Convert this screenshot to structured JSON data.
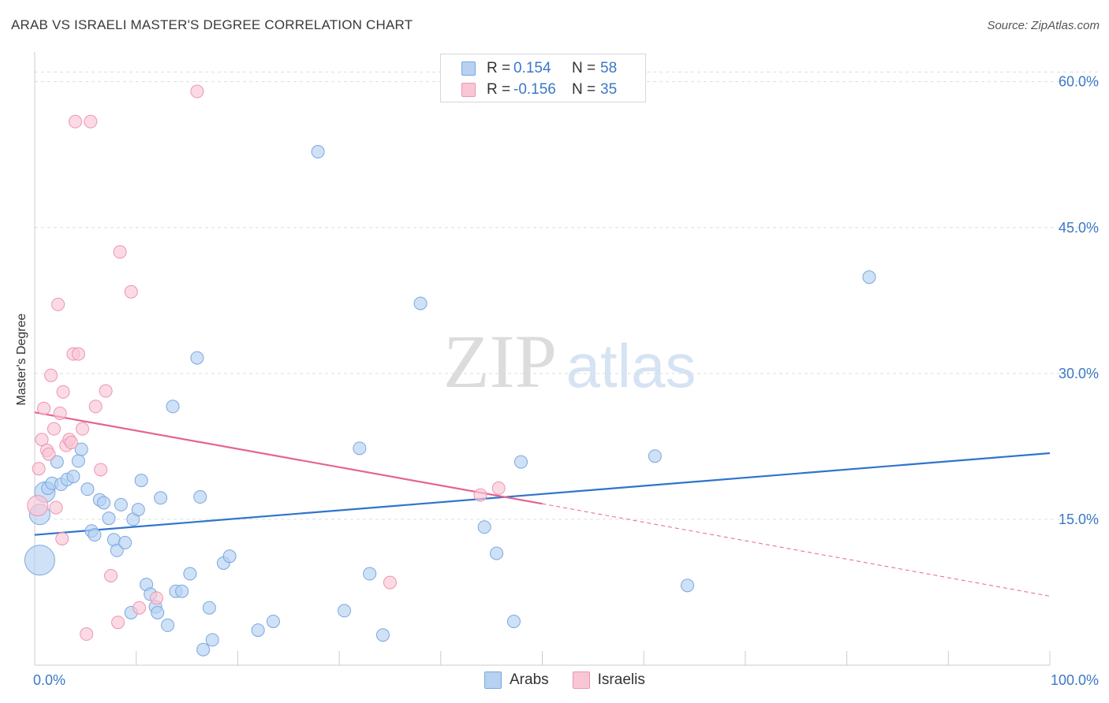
{
  "header": {
    "title": "ARAB VS ISRAELI MASTER'S DEGREE CORRELATION CHART",
    "source": "Source: ZipAtlas.com"
  },
  "watermark": {
    "zip": "ZIP",
    "atlas": "atlas"
  },
  "legend": {
    "rows": [
      {
        "r_label": "R =",
        "r_value": "0.154",
        "n_label": "N =",
        "n_value": "58",
        "color": "#b6d1f2",
        "border": "#7aa7de"
      },
      {
        "r_label": "R =",
        "r_value": "-0.156",
        "n_label": "N =",
        "n_value": "35",
        "color": "#f9c6d6",
        "border": "#ee94b1"
      }
    ],
    "bottom": [
      {
        "label": "Arabs",
        "color": "#b6d1f2",
        "border": "#7aa7de"
      },
      {
        "label": "Israelis",
        "color": "#f9c6d6",
        "border": "#ee94b1"
      }
    ]
  },
  "chart_data": {
    "type": "scatter",
    "ylabel": "Master's Degree",
    "xlim": [
      0,
      100
    ],
    "ylim": [
      0,
      62
    ],
    "x_tick_labels": [
      {
        "value": 0,
        "label": "0.0%"
      },
      {
        "value": 100,
        "label": "100.0%"
      }
    ],
    "y_tick_labels": [
      {
        "value": 15,
        "label": "15.0%"
      },
      {
        "value": 30,
        "label": "30.0%"
      },
      {
        "value": 45,
        "label": "45.0%"
      },
      {
        "value": 60,
        "label": "60.0%"
      }
    ],
    "grid": "horizontal-dashed",
    "legend_position": "top-center",
    "series": [
      {
        "name": "Arabs",
        "color": "#7aa7de",
        "fill": "#b6d1f2",
        "trend": {
          "x0": 0,
          "y0": 13.4,
          "x1": 100,
          "y1": 21.8,
          "color": "#2f74cc"
        },
        "points": [
          [
            0.5,
            10.8,
            3
          ],
          [
            0.5,
            15.5,
            2
          ],
          [
            1,
            17.8,
            2
          ],
          [
            1.3,
            18.2,
            1
          ],
          [
            1.7,
            18.7,
            1
          ],
          [
            2.2,
            20.9,
            1
          ],
          [
            2.6,
            18.6,
            1
          ],
          [
            3.2,
            19.1,
            1
          ],
          [
            3.8,
            19.4,
            1
          ],
          [
            4.3,
            21.0,
            1
          ],
          [
            4.6,
            22.2,
            1
          ],
          [
            5.2,
            18.1,
            1
          ],
          [
            5.6,
            13.8,
            1
          ],
          [
            5.9,
            13.4,
            1
          ],
          [
            6.4,
            17.0,
            1
          ],
          [
            6.8,
            16.7,
            1
          ],
          [
            7.3,
            15.1,
            1
          ],
          [
            7.8,
            12.9,
            1
          ],
          [
            8.1,
            11.8,
            1
          ],
          [
            8.5,
            16.5,
            1
          ],
          [
            8.9,
            12.6,
            1
          ],
          [
            9.5,
            5.4,
            1
          ],
          [
            9.7,
            15.0,
            1
          ],
          [
            10.2,
            16.0,
            1
          ],
          [
            10.5,
            19.0,
            1
          ],
          [
            11.0,
            8.3,
            1
          ],
          [
            11.4,
            7.3,
            1
          ],
          [
            11.9,
            6.0,
            1
          ],
          [
            12.1,
            5.4,
            1
          ],
          [
            12.4,
            17.2,
            1
          ],
          [
            13.1,
            4.1,
            1
          ],
          [
            13.6,
            26.6,
            1
          ],
          [
            13.9,
            7.6,
            1
          ],
          [
            14.5,
            7.6,
            1
          ],
          [
            15.3,
            9.4,
            1
          ],
          [
            16.0,
            31.6,
            1
          ],
          [
            16.3,
            17.3,
            1
          ],
          [
            16.6,
            1.6,
            1
          ],
          [
            17.2,
            5.9,
            1
          ],
          [
            17.5,
            2.6,
            1
          ],
          [
            18.6,
            10.5,
            1
          ],
          [
            19.2,
            11.2,
            1
          ],
          [
            22.0,
            3.6,
            1
          ],
          [
            23.5,
            4.5,
            1
          ],
          [
            27.9,
            52.8,
            1
          ],
          [
            30.5,
            5.6,
            1
          ],
          [
            32.0,
            22.3,
            1
          ],
          [
            33.0,
            9.4,
            1
          ],
          [
            34.3,
            3.1,
            1
          ],
          [
            38.0,
            37.2,
            1
          ],
          [
            44.3,
            14.2,
            1
          ],
          [
            45.5,
            11.5,
            1
          ],
          [
            47.2,
            4.5,
            1
          ],
          [
            47.9,
            20.9,
            1
          ],
          [
            61.1,
            21.5,
            1
          ],
          [
            64.3,
            8.2,
            1
          ],
          [
            82.2,
            39.9,
            1
          ]
        ]
      },
      {
        "name": "Israelis",
        "color": "#ee94b1",
        "fill": "#f9c6d6",
        "trend": {
          "x0": 0,
          "y0": 26.0,
          "x1": 50,
          "y1": 16.6,
          "color": "#e5648f"
        },
        "trend_ext": {
          "x0": 50,
          "y0": 16.6,
          "x1": 100,
          "y1": 7.1
        },
        "points": [
          [
            0.3,
            16.4,
            2
          ],
          [
            0.4,
            20.2,
            1
          ],
          [
            0.7,
            23.2,
            1
          ],
          [
            0.9,
            26.4,
            1
          ],
          [
            1.2,
            22.1,
            1
          ],
          [
            1.4,
            21.7,
            1
          ],
          [
            1.6,
            29.8,
            1
          ],
          [
            1.9,
            24.3,
            1
          ],
          [
            2.1,
            16.2,
            1
          ],
          [
            2.3,
            37.1,
            1
          ],
          [
            2.5,
            25.9,
            1
          ],
          [
            2.7,
            13.0,
            1
          ],
          [
            2.8,
            28.1,
            1
          ],
          [
            3.1,
            22.6,
            1
          ],
          [
            3.4,
            23.2,
            1
          ],
          [
            3.6,
            22.9,
            1
          ],
          [
            3.8,
            32.0,
            1
          ],
          [
            4.0,
            55.9,
            1
          ],
          [
            4.3,
            32.0,
            1
          ],
          [
            4.7,
            24.3,
            1
          ],
          [
            5.1,
            3.2,
            1
          ],
          [
            5.5,
            55.9,
            1
          ],
          [
            6.0,
            26.6,
            1
          ],
          [
            6.5,
            20.1,
            1
          ],
          [
            7.0,
            28.2,
            1
          ],
          [
            7.5,
            9.2,
            1
          ],
          [
            8.2,
            4.4,
            1
          ],
          [
            8.4,
            42.5,
            1
          ],
          [
            9.5,
            38.4,
            1
          ],
          [
            10.3,
            5.9,
            1
          ],
          [
            12.0,
            6.9,
            1
          ],
          [
            16.0,
            59.0,
            1
          ],
          [
            35.0,
            8.5,
            1
          ],
          [
            43.9,
            17.5,
            1
          ],
          [
            45.7,
            18.2,
            1
          ]
        ]
      }
    ]
  }
}
